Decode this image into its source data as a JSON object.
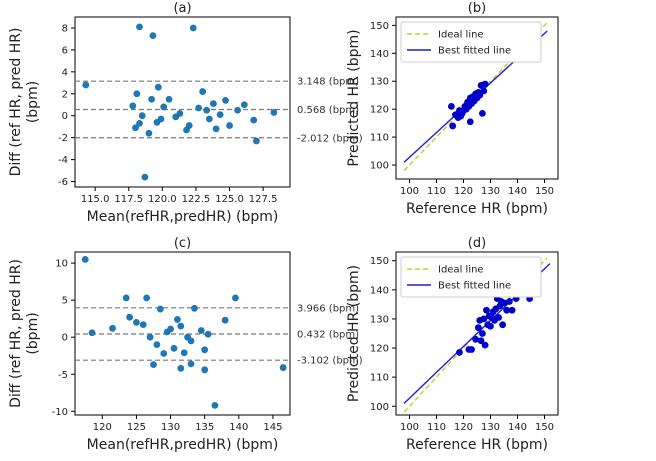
{
  "chart_data": [
    {
      "panel": "(a)",
      "type": "scatter",
      "xlabel": "Mean(refHR,predHR) (bpm)",
      "ylabel": "Diff (ref HR, pred HR)\n(bpm)",
      "xlim": [
        113.5,
        129.5
      ],
      "ylim": [
        -6.5,
        9
      ],
      "xticks": [
        115.0,
        117.5,
        120.0,
        122.5,
        125.0,
        127.5
      ],
      "yticks": [
        -6,
        -4,
        -2,
        0,
        2,
        4,
        6,
        8
      ],
      "color": "#1f77b4",
      "points": [
        [
          114.3,
          2.8
        ],
        [
          117.8,
          0.9
        ],
        [
          118.1,
          2.0
        ],
        [
          118.3,
          8.1
        ],
        [
          118.0,
          -1.1
        ],
        [
          118.3,
          -0.7
        ],
        [
          118.5,
          0.0
        ],
        [
          118.7,
          -5.6
        ],
        [
          119.0,
          -1.6
        ],
        [
          119.2,
          1.5
        ],
        [
          119.3,
          7.3
        ],
        [
          119.7,
          2.6
        ],
        [
          119.9,
          -0.3
        ],
        [
          119.6,
          -0.6
        ],
        [
          120.1,
          0.8
        ],
        [
          120.5,
          1.5
        ],
        [
          121.0,
          -0.1
        ],
        [
          121.3,
          0.2
        ],
        [
          121.8,
          -1.3
        ],
        [
          122.3,
          8.0
        ],
        [
          122.0,
          -0.9
        ],
        [
          122.7,
          0.7
        ],
        [
          123.0,
          2.2
        ],
        [
          123.3,
          0.5
        ],
        [
          123.5,
          -0.3
        ],
        [
          123.8,
          1.1
        ],
        [
          124.0,
          -1.2
        ],
        [
          124.3,
          0.1
        ],
        [
          124.7,
          1.4
        ],
        [
          125.0,
          -0.9
        ],
        [
          125.6,
          0.5
        ],
        [
          126.1,
          1.0
        ],
        [
          126.8,
          -0.4
        ],
        [
          127.0,
          -2.3
        ],
        [
          128.3,
          0.3
        ]
      ],
      "reference_lines": [
        {
          "value": 3.148,
          "label": "3.148 (bpm)"
        },
        {
          "value": 0.568,
          "label": "0.568 (bpm)"
        },
        {
          "value": -2.012,
          "label": "-2.012 (bpm)"
        }
      ],
      "grid": false
    },
    {
      "panel": "(b)",
      "type": "scatter",
      "xlabel": "Reference HR (bpm)",
      "ylabel": "Predicted HR (bpm)",
      "xlim": [
        95,
        155
      ],
      "ylim": [
        95,
        153
      ],
      "xticks": [
        100,
        110,
        120,
        130,
        140,
        150
      ],
      "yticks": [
        100,
        110,
        120,
        130,
        140,
        150
      ],
      "color": "#0000cd",
      "points": [
        [
          115.5,
          121.0
        ],
        [
          116.0,
          114.0
        ],
        [
          117.0,
          118.0
        ],
        [
          118.0,
          117.0
        ],
        [
          118.5,
          119.5
        ],
        [
          119.0,
          117.5
        ],
        [
          119.5,
          118.5
        ],
        [
          120.0,
          119.5
        ],
        [
          120.5,
          121.0
        ],
        [
          121.0,
          120.0
        ],
        [
          121.5,
          122.5
        ],
        [
          122.0,
          121.0
        ],
        [
          122.5,
          124.0
        ],
        [
          122.5,
          115.5
        ],
        [
          123.0,
          122.0
        ],
        [
          123.5,
          124.5
        ],
        [
          124.0,
          123.0
        ],
        [
          124.5,
          125.5
        ],
        [
          125.0,
          124.0
        ],
        [
          125.5,
          126.0
        ],
        [
          126.0,
          125.0
        ],
        [
          126.5,
          128.5
        ],
        [
          127.0,
          118.5
        ],
        [
          127.5,
          126.5
        ],
        [
          128.0,
          129.0
        ]
      ],
      "lines": [
        {
          "name": "Ideal line",
          "color": "#c8c832",
          "dash": true,
          "x": [
            98,
            151
          ],
          "y": [
            98,
            151
          ]
        },
        {
          "name": "Best fitted line",
          "color": "#1f1fdd",
          "dash": false,
          "x": [
            98,
            151
          ],
          "y": [
            101,
            148
          ]
        }
      ],
      "legend": "top-left",
      "grid": false
    },
    {
      "panel": "(c)",
      "type": "scatter",
      "xlabel": "Mean(refHR,predHR) (bpm)",
      "ylabel": "Diff (ref HR, pred HR)\n(bpm)",
      "xlim": [
        116,
        147.5
      ],
      "ylim": [
        -10.5,
        11.5
      ],
      "xticks": [
        120,
        125,
        130,
        135,
        140,
        145
      ],
      "yticks": [
        -10,
        -5,
        0,
        5,
        10
      ],
      "color": "#1f77b4",
      "points": [
        [
          117.5,
          10.5
        ],
        [
          118.5,
          0.6
        ],
        [
          121.5,
          1.2
        ],
        [
          123.5,
          5.3
        ],
        [
          124.0,
          2.7
        ],
        [
          125.0,
          2.0
        ],
        [
          126.0,
          1.7
        ],
        [
          126.5,
          5.3
        ],
        [
          127.0,
          0.0
        ],
        [
          127.5,
          -3.7
        ],
        [
          128.0,
          -1.0
        ],
        [
          128.5,
          3.8
        ],
        [
          129.0,
          -2.2
        ],
        [
          129.5,
          0.7
        ],
        [
          130.0,
          1.1
        ],
        [
          130.5,
          -1.5
        ],
        [
          131.0,
          2.4
        ],
        [
          131.5,
          -4.2
        ],
        [
          131.5,
          1.5
        ],
        [
          132.0,
          -2.1
        ],
        [
          132.5,
          0.0
        ],
        [
          133.0,
          -0.5
        ],
        [
          133.0,
          -3.6
        ],
        [
          133.5,
          3.9
        ],
        [
          134.5,
          0.9
        ],
        [
          135.0,
          -1.7
        ],
        [
          135.0,
          -4.4
        ],
        [
          135.5,
          0.4
        ],
        [
          136.5,
          -9.2
        ],
        [
          138.0,
          2.3
        ],
        [
          139.5,
          5.3
        ],
        [
          146.5,
          -4.1
        ]
      ],
      "reference_lines": [
        {
          "value": 3.966,
          "label": "3.966 (bpm)"
        },
        {
          "value": 0.432,
          "label": "0.432 (bpm)"
        },
        {
          "value": -3.102,
          "label": "-3.102 (bpm)"
        }
      ],
      "grid": false
    },
    {
      "panel": "(d)",
      "type": "scatter",
      "xlabel": "Reference HR (bpm)",
      "ylabel": "Predicted HR (bpm)",
      "xlim": [
        95,
        155
      ],
      "ylim": [
        97,
        153
      ],
      "xticks": [
        100,
        110,
        120,
        130,
        140,
        150
      ],
      "yticks": [
        100,
        110,
        120,
        130,
        140,
        150
      ],
      "color": "#0000cd",
      "points": [
        [
          118.5,
          118.5
        ],
        [
          122.0,
          119.5
        ],
        [
          123.0,
          119.5
        ],
        [
          124.5,
          123.0
        ],
        [
          125.5,
          127.0
        ],
        [
          126.0,
          129.5
        ],
        [
          126.5,
          122.5
        ],
        [
          127.0,
          125.0
        ],
        [
          127.5,
          130.0
        ],
        [
          128.0,
          121.0
        ],
        [
          128.5,
          133.0
        ],
        [
          129.0,
          128.0
        ],
        [
          129.5,
          131.0
        ],
        [
          130.0,
          127.5
        ],
        [
          130.5,
          130.5
        ],
        [
          131.0,
          132.5
        ],
        [
          131.5,
          129.5
        ],
        [
          132.0,
          133.5
        ],
        [
          132.5,
          137.0
        ],
        [
          133.0,
          130.5
        ],
        [
          133.5,
          134.5
        ],
        [
          134.0,
          136.0
        ],
        [
          134.5,
          128.0
        ],
        [
          135.0,
          135.5
        ],
        [
          136.0,
          133.0
        ],
        [
          137.0,
          136.0
        ],
        [
          138.0,
          133.0
        ],
        [
          139.5,
          137.0
        ],
        [
          144.5,
          137.0
        ]
      ],
      "lines": [
        {
          "name": "Ideal line",
          "color": "#c8c832",
          "dash": true,
          "x": [
            98,
            151
          ],
          "y": [
            98,
            151
          ]
        },
        {
          "name": "Best fitted line",
          "color": "#1f1fdd",
          "dash": false,
          "x": [
            98,
            152
          ],
          "y": [
            101,
            149
          ]
        }
      ],
      "legend": "top-left",
      "grid": false
    }
  ]
}
